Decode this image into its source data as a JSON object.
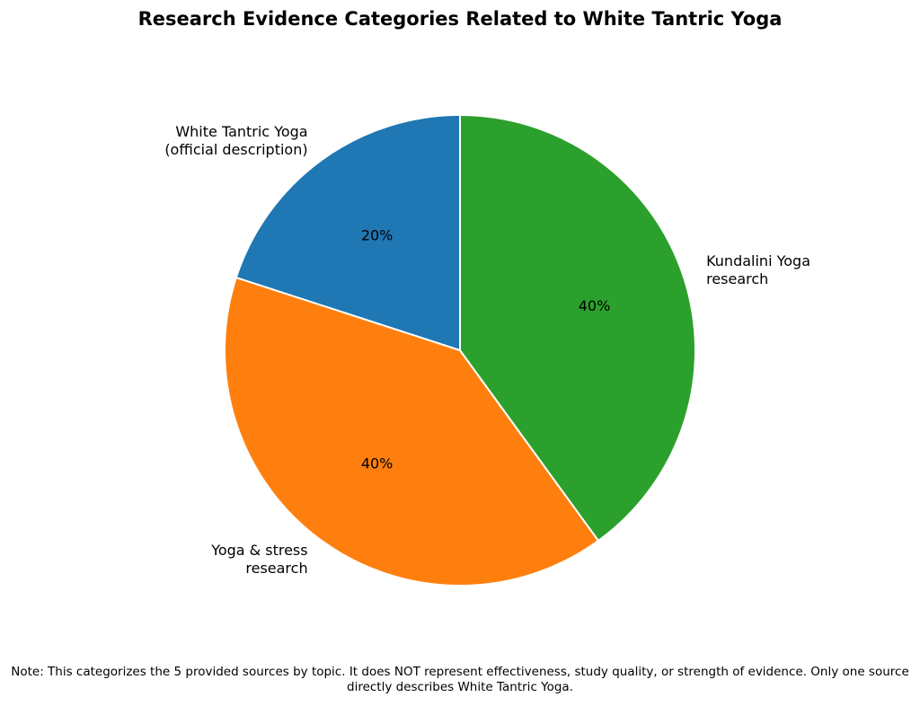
{
  "chart_data": {
    "type": "pie",
    "title": "Research Evidence Categories Related to White Tantric Yoga",
    "categories": [
      "White Tantric Yoga\n(official description)",
      "Yoga & stress\nresearch",
      "Kundalini Yoga\nresearch"
    ],
    "values": [
      20,
      40,
      40
    ],
    "value_labels": [
      "20%",
      "40%",
      "40%"
    ],
    "colors": [
      "#1f77b4",
      "#ff7f0e",
      "#2ca02c"
    ],
    "note": "Note: This categorizes the 5 provided sources by topic. It does NOT represent effectiveness, study quality, or strength of evidence. Only one source directly describes White Tantric Yoga."
  }
}
